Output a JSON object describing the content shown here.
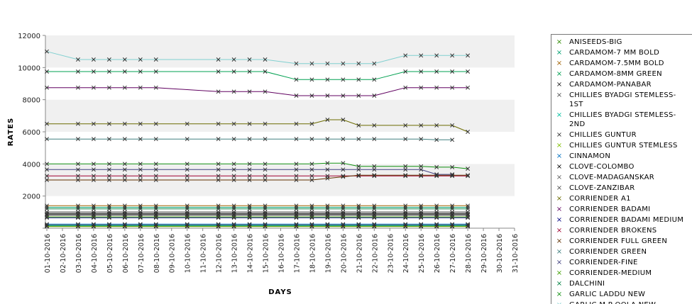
{
  "chart_data": {
    "type": "line",
    "title": "",
    "xlabel": "DAYS",
    "ylabel": "RATES",
    "ylim": [
      0,
      12000
    ],
    "yticks": [
      0,
      2000,
      4000,
      6000,
      8000,
      10000,
      12000
    ],
    "ytick_labels": [
      "",
      "2000",
      "4000",
      "6000",
      "8000",
      "10000",
      "12000"
    ],
    "x": [
      "01-10-2016",
      "02-10-2016",
      "03-10-2016",
      "04-10-2016",
      "05-10-2016",
      "06-10-2016",
      "07-10-2016",
      "08-10-2016",
      "09-10-2016",
      "10-10-2016",
      "11-10-2016",
      "12-10-2016",
      "13-10-2016",
      "14-10-2016",
      "15-10-2016",
      "16-10-2016",
      "17-10-2016",
      "18-10-2016",
      "19-10-2016",
      "20-10-2016",
      "21-10-2016",
      "22-10-2016",
      "23-10-2016",
      "24-10-2016",
      "25-10-2016",
      "26-10-2016",
      "27-10-2016",
      "28-10-2016",
      "29-10-2016",
      "30-10-2016",
      "31-10-2016"
    ],
    "grid": "alternating horizontal bands",
    "legend_position": "right",
    "series": [
      {
        "name": "ANISEEDS-BIG",
        "color": "#2e8b00",
        "values": [
          120,
          null,
          120,
          120,
          120,
          120,
          120,
          120,
          null,
          120,
          null,
          120,
          120,
          120,
          120,
          null,
          120,
          120,
          120,
          120,
          120,
          120,
          null,
          120,
          120,
          120,
          120,
          120,
          null,
          null,
          null
        ]
      },
      {
        "name": "CARDAMOM-7 MM BOLD",
        "color": "#00a070",
        "values": [
          1300,
          null,
          1300,
          1300,
          1300,
          1300,
          1300,
          1300,
          null,
          1300,
          null,
          1300,
          1300,
          1300,
          1300,
          null,
          1300,
          1300,
          1300,
          1300,
          1300,
          1300,
          null,
          1300,
          1300,
          1300,
          1300,
          1300,
          null,
          null,
          null
        ]
      },
      {
        "name": "CARDAMOM-7.5MM BOLD",
        "color": "#a06000",
        "values": [
          1400,
          null,
          1400,
          1400,
          1400,
          1400,
          1400,
          1400,
          null,
          1400,
          null,
          1400,
          1400,
          1400,
          1400,
          null,
          1400,
          1400,
          1400,
          1400,
          1400,
          1400,
          null,
          1400,
          1400,
          1400,
          1400,
          1400,
          null,
          null,
          null
        ]
      },
      {
        "name": "CARDAMOM-8MM GREEN",
        "color": "#00a050",
        "values": [
          9750,
          null,
          9750,
          9750,
          9750,
          9750,
          9750,
          9750,
          null,
          null,
          null,
          9750,
          9750,
          9750,
          9750,
          null,
          9250,
          9250,
          9250,
          9250,
          9250,
          9250,
          null,
          9750,
          9750,
          9750,
          9750,
          9750,
          null,
          null,
          null
        ]
      },
      {
        "name": "CARDAMOM-PANABAR",
        "color": "#202020",
        "values": [
          1000,
          null,
          1000,
          1000,
          1000,
          1000,
          1000,
          1000,
          null,
          1000,
          null,
          1000,
          1000,
          1000,
          1000,
          null,
          1000,
          1000,
          1000,
          1000,
          1000,
          1000,
          null,
          1000,
          1000,
          1000,
          1000,
          1000,
          null,
          null,
          null
        ]
      },
      {
        "name": "CHILLIES BYADGI STEMLESS-1ST",
        "color": "#505050",
        "values": [
          200,
          null,
          200,
          200,
          200,
          200,
          200,
          200,
          null,
          200,
          null,
          200,
          200,
          200,
          200,
          null,
          200,
          200,
          200,
          200,
          200,
          200,
          null,
          200,
          200,
          200,
          200,
          200,
          null,
          null,
          null
        ]
      },
      {
        "name": "CHILLIES BYADGI STEMLESS-2ND",
        "color": "#00c0a0",
        "values": [
          160,
          null,
          160,
          160,
          160,
          160,
          160,
          160,
          null,
          160,
          null,
          160,
          160,
          160,
          160,
          null,
          160,
          160,
          160,
          160,
          160,
          160,
          null,
          160,
          160,
          160,
          160,
          160,
          null,
          null,
          null
        ]
      },
      {
        "name": "CHILLIES GUNTUR",
        "color": "#303030",
        "values": [
          110,
          null,
          110,
          110,
          110,
          110,
          110,
          110,
          null,
          110,
          null,
          110,
          110,
          110,
          110,
          null,
          110,
          110,
          110,
          110,
          110,
          110,
          null,
          110,
          110,
          110,
          110,
          110,
          null,
          null,
          null
        ]
      },
      {
        "name": "CHILLIES GUNTUR STEMLESS",
        "color": "#80c000",
        "values": [
          100,
          null,
          100,
          100,
          100,
          100,
          100,
          100,
          null,
          100,
          null,
          100,
          100,
          100,
          100,
          null,
          100,
          100,
          100,
          100,
          100,
          100,
          null,
          100,
          100,
          100,
          100,
          100,
          null,
          null,
          null
        ]
      },
      {
        "name": "CINNAMON",
        "color": "#0070c0",
        "values": [
          250,
          null,
          250,
          250,
          250,
          250,
          250,
          250,
          null,
          250,
          null,
          250,
          250,
          250,
          250,
          null,
          250,
          250,
          250,
          250,
          250,
          250,
          null,
          250,
          250,
          250,
          250,
          250,
          null,
          null,
          null
        ]
      },
      {
        "name": "CLOVE-COLOMBO",
        "color": "#000000",
        "values": [
          900,
          null,
          900,
          900,
          900,
          900,
          900,
          900,
          null,
          900,
          null,
          900,
          900,
          900,
          900,
          null,
          900,
          900,
          900,
          900,
          900,
          900,
          null,
          900,
          900,
          900,
          900,
          900,
          null,
          null,
          null
        ]
      },
      {
        "name": "CLOVE-MADAGANSKAR",
        "color": "#606060",
        "values": [
          850,
          null,
          850,
          850,
          850,
          850,
          850,
          850,
          null,
          850,
          null,
          850,
          850,
          850,
          850,
          null,
          850,
          850,
          850,
          850,
          850,
          850,
          null,
          850,
          850,
          850,
          850,
          850,
          null,
          null,
          null
        ]
      },
      {
        "name": "CLOVE-ZANZIBAR",
        "color": "#505050",
        "values": [
          800,
          null,
          800,
          800,
          800,
          800,
          800,
          800,
          null,
          800,
          null,
          800,
          800,
          800,
          800,
          null,
          800,
          800,
          800,
          800,
          800,
          800,
          null,
          800,
          800,
          800,
          800,
          800,
          null,
          null,
          null
        ]
      },
      {
        "name": "CORRIENDER A1",
        "color": "#6b6b00",
        "values": [
          6500,
          null,
          6500,
          6500,
          6500,
          6500,
          6500,
          6500,
          null,
          6500,
          null,
          6500,
          6500,
          6500,
          6500,
          null,
          6500,
          6500,
          6750,
          6750,
          6400,
          6400,
          null,
          6400,
          6400,
          6400,
          6400,
          6000,
          null,
          null,
          null
        ]
      },
      {
        "name": "CORRIENDER BADAMI",
        "color": "#600060",
        "values": [
          8750,
          null,
          8750,
          8750,
          8750,
          8750,
          8750,
          8750,
          null,
          null,
          null,
          8500,
          8500,
          8500,
          8500,
          null,
          8250,
          8250,
          8250,
          8250,
          8250,
          8250,
          null,
          8750,
          8750,
          8750,
          8750,
          8750,
          null,
          null,
          null
        ]
      },
      {
        "name": "CORRIENDER BADAMI MEDIUM",
        "color": "#000080",
        "values": [
          650,
          null,
          650,
          650,
          650,
          650,
          650,
          650,
          null,
          650,
          null,
          650,
          650,
          650,
          650,
          null,
          650,
          650,
          650,
          650,
          650,
          650,
          null,
          650,
          650,
          650,
          650,
          650,
          null,
          null,
          null
        ]
      },
      {
        "name": "CORRIENDER BROKENS",
        "color": "#a00030",
        "values": [
          3250,
          null,
          3250,
          3250,
          3250,
          3250,
          3250,
          3250,
          null,
          3250,
          null,
          3250,
          3250,
          3250,
          3250,
          null,
          3250,
          3250,
          3250,
          3250,
          3250,
          3250,
          null,
          3250,
          3250,
          3250,
          3250,
          3250,
          null,
          null,
          null
        ]
      },
      {
        "name": "CORRIENDER FULL GREEN",
        "color": "#603000",
        "values": [
          3000,
          null,
          3000,
          3000,
          3000,
          3000,
          3000,
          3000,
          null,
          3000,
          null,
          3000,
          3000,
          3000,
          3000,
          null,
          3000,
          3000,
          3100,
          3200,
          3300,
          3300,
          null,
          3300,
          3300,
          3300,
          3300,
          3300,
          null,
          null,
          null
        ]
      },
      {
        "name": "CORRIENDER GREEN",
        "color": "#408080",
        "values": [
          5550,
          null,
          5550,
          5550,
          5550,
          5550,
          5550,
          5550,
          null,
          5550,
          null,
          5550,
          5550,
          5550,
          5550,
          null,
          5550,
          5550,
          5550,
          5550,
          5550,
          5550,
          null,
          5550,
          5550,
          5500,
          5500,
          null,
          null,
          null,
          null
        ]
      },
      {
        "name": "CORRIENDER-FINE",
        "color": "#404080",
        "values": [
          3650,
          null,
          3650,
          3650,
          3650,
          3650,
          3650,
          3650,
          null,
          3650,
          null,
          3650,
          3650,
          3650,
          3650,
          null,
          3650,
          3650,
          3650,
          3650,
          3650,
          3650,
          null,
          3650,
          3650,
          3350,
          3350,
          null,
          null,
          null,
          null
        ]
      },
      {
        "name": "CORRIENDER-MEDIUM",
        "color": "#40a000",
        "values": [
          700,
          null,
          700,
          700,
          700,
          700,
          700,
          700,
          null,
          700,
          null,
          700,
          700,
          700,
          700,
          null,
          700,
          700,
          700,
          700,
          700,
          700,
          null,
          700,
          700,
          700,
          700,
          700,
          null,
          null,
          null
        ]
      },
      {
        "name": "DALCHINI",
        "color": "#008040",
        "values": [
          1200,
          null,
          1200,
          1200,
          1200,
          1200,
          1200,
          1200,
          null,
          1200,
          null,
          1200,
          1200,
          1200,
          1200,
          null,
          1200,
          1200,
          1200,
          1200,
          1200,
          1200,
          null,
          1200,
          1200,
          1200,
          1200,
          1200,
          null,
          null,
          null
        ]
      },
      {
        "name": "GARLIC LADDU NEW",
        "color": "#109010",
        "values": [
          4000,
          null,
          4000,
          4000,
          4000,
          4000,
          4000,
          4000,
          null,
          4000,
          null,
          4000,
          4000,
          4000,
          4000,
          null,
          4000,
          4000,
          4050,
          4050,
          3850,
          3850,
          null,
          3850,
          3850,
          3800,
          3800,
          3700,
          null,
          null,
          null
        ]
      },
      {
        "name": "GARLIC M.P OOLA NEW",
        "color": "#80d0d0",
        "values": [
          11000,
          null,
          10500,
          10500,
          10500,
          10500,
          10500,
          10500,
          null,
          null,
          null,
          10500,
          10500,
          10500,
          10500,
          null,
          10250,
          10250,
          10250,
          10250,
          10250,
          10250,
          null,
          10750,
          10750,
          10750,
          10750,
          10750,
          null,
          null,
          null
        ]
      }
    ]
  }
}
